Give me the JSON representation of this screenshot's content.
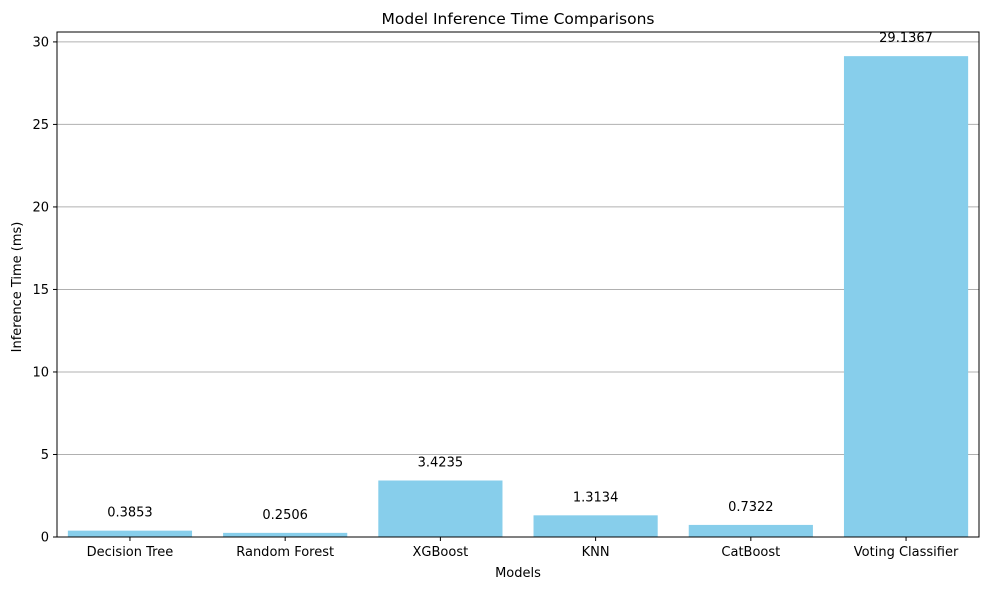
{
  "chart_data": {
    "type": "bar",
    "title": "Model Inference Time Comparisons",
    "xlabel": "Models",
    "ylabel": "Inference Time (ms)",
    "categories": [
      "Decision Tree",
      "Random Forest",
      "XGBoost",
      "KNN",
      "CatBoost",
      "Voting Classifier"
    ],
    "values": [
      0.3853,
      0.2506,
      3.4235,
      1.3134,
      0.7322,
      29.1367
    ],
    "value_labels": [
      "0.3853",
      "0.2506",
      "3.4235",
      "1.3134",
      "0.7322",
      "29.1367"
    ],
    "ylim": [
      0,
      30.6
    ],
    "yticks": [
      0,
      5,
      10,
      15,
      20,
      25,
      30
    ],
    "grid": "y",
    "legend": "none",
    "bar_color": "#87ceeb",
    "grid_color": "#b0b0b0"
  }
}
